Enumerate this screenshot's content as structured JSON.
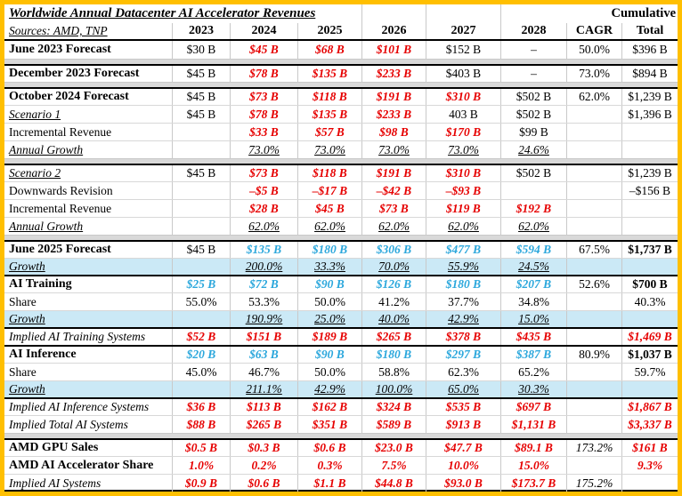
{
  "title": "Worldwide Annual Datacenter AI Accelerator Revenues",
  "cumulative_label": "Cumulative",
  "sources": "Sources: AMD, TNP",
  "columns": [
    "2023",
    "2024",
    "2025",
    "2026",
    "2027",
    "2028",
    "CAGR",
    "Total"
  ],
  "colors": {
    "outer_border_gold": "#FFBF00",
    "negative_red": "#E60000",
    "forecast_blue": "#2BA7DC",
    "growth_row_bg": "#CBE9F6",
    "separator_gray": "#D9D9D9"
  },
  "rows": [
    {
      "label": "June 2023 Forecast",
      "ls": "b",
      "top": "none",
      "cells": [
        {
          "t": "$30 B",
          "s": "k"
        },
        {
          "t": "$45 B",
          "s": "r"
        },
        {
          "t": "$68 B",
          "s": "r"
        },
        {
          "t": "$101 B",
          "s": "r"
        },
        {
          "t": "$152 B",
          "s": "k"
        },
        {
          "t": "–",
          "s": "k"
        },
        {
          "t": "50.0%",
          "s": "k"
        },
        {
          "t": "$396 B",
          "s": "k"
        }
      ]
    },
    {
      "label": "December 2023 Forecast",
      "ls": "b",
      "top": "black",
      "sep": true,
      "cells": [
        {
          "t": "$45 B",
          "s": "k"
        },
        {
          "t": "$78 B",
          "s": "r"
        },
        {
          "t": "$135 B",
          "s": "r"
        },
        {
          "t": "$233 B",
          "s": "r"
        },
        {
          "t": "$403 B",
          "s": "k"
        },
        {
          "t": "–",
          "s": "k"
        },
        {
          "t": "73.0%",
          "s": "k"
        },
        {
          "t": "$894 B",
          "s": "k"
        }
      ]
    },
    {
      "label": "October 2024 Forecast",
      "ls": "b",
      "top": "black",
      "sep": true,
      "cells": [
        {
          "t": "$45 B",
          "s": "k"
        },
        {
          "t": "$73 B",
          "s": "r"
        },
        {
          "t": "$118 B",
          "s": "r"
        },
        {
          "t": "$191 B",
          "s": "r"
        },
        {
          "t": "$310 B",
          "s": "r"
        },
        {
          "t": "$502 B",
          "s": "k"
        },
        {
          "t": "62.0%",
          "s": "k"
        },
        {
          "t": "$1,239 B",
          "s": "k"
        }
      ]
    },
    {
      "label": "Scenario 1",
      "ls": "iu",
      "top": "grid",
      "cells": [
        {
          "t": "$45 B",
          "s": "k"
        },
        {
          "t": "$78 B",
          "s": "r"
        },
        {
          "t": "$135 B",
          "s": "r"
        },
        {
          "t": "$233 B",
          "s": "r"
        },
        {
          "t": "403 B",
          "s": "k"
        },
        {
          "t": "$502 B",
          "s": "k"
        },
        null,
        {
          "t": "$1,396 B",
          "s": "k"
        }
      ]
    },
    {
      "label": "Incremental Revenue",
      "ls": "r",
      "top": "grid",
      "cells": [
        null,
        {
          "t": "$33 B",
          "s": "r"
        },
        {
          "t": "$57 B",
          "s": "r"
        },
        {
          "t": "$98 B",
          "s": "r"
        },
        {
          "t": "$170 B",
          "s": "r"
        },
        {
          "t": "$99 B",
          "s": "k"
        },
        null,
        null
      ]
    },
    {
      "label": "Annual Growth",
      "ls": "iu",
      "top": "grid",
      "cells": [
        null,
        {
          "t": "73.0%",
          "s": "u"
        },
        {
          "t": "73.0%",
          "s": "u"
        },
        {
          "t": "73.0%",
          "s": "u"
        },
        {
          "t": "73.0%",
          "s": "u"
        },
        {
          "t": "24.6%",
          "s": "u"
        },
        null,
        null
      ]
    },
    {
      "label": "Scenario 2",
      "ls": "iu",
      "top": "black",
      "sep": true,
      "cells": [
        {
          "t": "$45 B",
          "s": "k"
        },
        {
          "t": "$73 B",
          "s": "r"
        },
        {
          "t": "$118 B",
          "s": "r"
        },
        {
          "t": "$191 B",
          "s": "r"
        },
        {
          "t": "$310 B",
          "s": "r"
        },
        {
          "t": "$502 B",
          "s": "k"
        },
        null,
        {
          "t": "$1,239 B",
          "s": "k"
        }
      ]
    },
    {
      "label": "Downwards Revision",
      "ls": "r",
      "top": "grid",
      "cells": [
        null,
        {
          "t": "–$5 B",
          "s": "r"
        },
        {
          "t": "–$17 B",
          "s": "r"
        },
        {
          "t": "–$42 B",
          "s": "r"
        },
        {
          "t": "–$93 B",
          "s": "r"
        },
        null,
        null,
        {
          "t": "–$156 B",
          "s": "k"
        }
      ]
    },
    {
      "label": "Incremental Revenue",
      "ls": "r",
      "top": "grid",
      "cells": [
        null,
        {
          "t": "$28 B",
          "s": "r"
        },
        {
          "t": "$45 B",
          "s": "r"
        },
        {
          "t": "$73 B",
          "s": "r"
        },
        {
          "t": "$119 B",
          "s": "r"
        },
        {
          "t": "$192 B",
          "s": "r"
        },
        null,
        null
      ]
    },
    {
      "label": "Annual Growth",
      "ls": "iu",
      "top": "grid",
      "cells": [
        null,
        {
          "t": "62.0%",
          "s": "u"
        },
        {
          "t": "62.0%",
          "s": "u"
        },
        {
          "t": "62.0%",
          "s": "u"
        },
        {
          "t": "62.0%",
          "s": "u"
        },
        {
          "t": "62.0%",
          "s": "u"
        },
        null,
        null
      ]
    },
    {
      "label": "June 2025 Forecast",
      "ls": "b",
      "top": "black",
      "sep": true,
      "cells": [
        {
          "t": "$45 B",
          "s": "k"
        },
        {
          "t": "$135 B",
          "s": "b"
        },
        {
          "t": "$180 B",
          "s": "b"
        },
        {
          "t": "$306 B",
          "s": "b"
        },
        {
          "t": "$477 B",
          "s": "b"
        },
        {
          "t": "$594 B",
          "s": "b"
        },
        {
          "t": "67.5%",
          "s": "k"
        },
        {
          "t": "$1,737 B",
          "s": "kb"
        }
      ]
    },
    {
      "label": "Growth",
      "ls": "iu",
      "top": "grid",
      "bg": "blue",
      "cells": [
        null,
        {
          "t": "200.0%",
          "s": "u"
        },
        {
          "t": "33.3%",
          "s": "u"
        },
        {
          "t": "70.0%",
          "s": "u"
        },
        {
          "t": "55.9%",
          "s": "u"
        },
        {
          "t": "24.5%",
          "s": "u"
        },
        null,
        null
      ]
    },
    {
      "label": "AI Training",
      "ls": "b",
      "top": "black",
      "cells": [
        {
          "t": "$25 B",
          "s": "b"
        },
        {
          "t": "$72 B",
          "s": "b"
        },
        {
          "t": "$90 B",
          "s": "b"
        },
        {
          "t": "$126 B",
          "s": "b"
        },
        {
          "t": "$180 B",
          "s": "b"
        },
        {
          "t": "$207 B",
          "s": "b"
        },
        {
          "t": "52.6%",
          "s": "k"
        },
        {
          "t": "$700 B",
          "s": "kb"
        }
      ]
    },
    {
      "label": "Share",
      "ls": "r",
      "top": "grid",
      "cells": [
        {
          "t": "55.0%",
          "s": "k"
        },
        {
          "t": "53.3%",
          "s": "k"
        },
        {
          "t": "50.0%",
          "s": "k"
        },
        {
          "t": "41.2%",
          "s": "k"
        },
        {
          "t": "37.7%",
          "s": "k"
        },
        {
          "t": "34.8%",
          "s": "k"
        },
        null,
        {
          "t": "40.3%",
          "s": "k"
        }
      ]
    },
    {
      "label": "Growth",
      "ls": "iu",
      "top": "grid",
      "bg": "blue",
      "cells": [
        null,
        {
          "t": "190.9%",
          "s": "u"
        },
        {
          "t": "25.0%",
          "s": "u"
        },
        {
          "t": "40.0%",
          "s": "u"
        },
        {
          "t": "42.9%",
          "s": "u"
        },
        {
          "t": "15.0%",
          "s": "u"
        },
        null,
        null
      ]
    },
    {
      "label": "Implied AI Training Systems",
      "ls": "i",
      "top": "black",
      "cells": [
        {
          "t": "$52 B",
          "s": "r"
        },
        {
          "t": "$151 B",
          "s": "r"
        },
        {
          "t": "$189 B",
          "s": "r"
        },
        {
          "t": "$265 B",
          "s": "r"
        },
        {
          "t": "$378 B",
          "s": "r"
        },
        {
          "t": "$435 B",
          "s": "r"
        },
        null,
        {
          "t": "$1,469 B",
          "s": "r"
        }
      ]
    },
    {
      "label": "AI Inference",
      "ls": "b",
      "top": "black",
      "cells": [
        {
          "t": "$20 B",
          "s": "b"
        },
        {
          "t": "$63 B",
          "s": "b"
        },
        {
          "t": "$90 B",
          "s": "b"
        },
        {
          "t": "$180 B",
          "s": "b"
        },
        {
          "t": "$297 B",
          "s": "b"
        },
        {
          "t": "$387 B",
          "s": "b"
        },
        {
          "t": "80.9%",
          "s": "k"
        },
        {
          "t": "$1,037 B",
          "s": "kb"
        }
      ]
    },
    {
      "label": "Share",
      "ls": "r",
      "top": "grid",
      "cells": [
        {
          "t": "45.0%",
          "s": "k"
        },
        {
          "t": "46.7%",
          "s": "k"
        },
        {
          "t": "50.0%",
          "s": "k"
        },
        {
          "t": "58.8%",
          "s": "k"
        },
        {
          "t": "62.3%",
          "s": "k"
        },
        {
          "t": "65.2%",
          "s": "k"
        },
        null,
        {
          "t": "59.7%",
          "s": "k"
        }
      ]
    },
    {
      "label": "Growth",
      "ls": "iu",
      "top": "grid",
      "bg": "blue",
      "cells": [
        null,
        {
          "t": "211.1%",
          "s": "u"
        },
        {
          "t": "42.9%",
          "s": "u"
        },
        {
          "t": "100.0%",
          "s": "u"
        },
        {
          "t": "65.0%",
          "s": "u"
        },
        {
          "t": "30.3%",
          "s": "u"
        },
        null,
        null
      ]
    },
    {
      "label": "Implied AI Inference Systems",
      "ls": "i",
      "top": "black",
      "cells": [
        {
          "t": "$36 B",
          "s": "r"
        },
        {
          "t": "$113 B",
          "s": "r"
        },
        {
          "t": "$162 B",
          "s": "r"
        },
        {
          "t": "$324 B",
          "s": "r"
        },
        {
          "t": "$535 B",
          "s": "r"
        },
        {
          "t": "$697 B",
          "s": "r"
        },
        null,
        {
          "t": "$1,867 B",
          "s": "r"
        }
      ]
    },
    {
      "label": "Implied Total AI Systems",
      "ls": "i",
      "top": "grid",
      "cells": [
        {
          "t": "$88 B",
          "s": "r"
        },
        {
          "t": "$265 B",
          "s": "r"
        },
        {
          "t": "$351 B",
          "s": "r"
        },
        {
          "t": "$589 B",
          "s": "r"
        },
        {
          "t": "$913 B",
          "s": "r"
        },
        {
          "t": "$1,131 B",
          "s": "r"
        },
        null,
        {
          "t": "$3,337 B",
          "s": "r"
        }
      ]
    },
    {
      "label": "AMD GPU Sales",
      "ls": "b",
      "top": "black",
      "sep": true,
      "cells": [
        {
          "t": "$0.5 B",
          "s": "r"
        },
        {
          "t": "$0.3 B",
          "s": "r"
        },
        {
          "t": "$0.6 B",
          "s": "r"
        },
        {
          "t": "$23.0 B",
          "s": "r"
        },
        {
          "t": "$47.7 B",
          "s": "r"
        },
        {
          "t": "$89.1 B",
          "s": "r"
        },
        {
          "t": "173.2%",
          "s": "ki"
        },
        {
          "t": "$161 B",
          "s": "r"
        }
      ]
    },
    {
      "label": "AMD AI Accelerator Share",
      "ls": "b",
      "top": "grid",
      "cells": [
        {
          "t": "1.0%",
          "s": "r"
        },
        {
          "t": "0.2%",
          "s": "r"
        },
        {
          "t": "0.3%",
          "s": "r"
        },
        {
          "t": "7.5%",
          "s": "r"
        },
        {
          "t": "10.0%",
          "s": "r"
        },
        {
          "t": "15.0%",
          "s": "r"
        },
        null,
        {
          "t": "9.3%",
          "s": "r"
        }
      ]
    },
    {
      "label": "Implied AI Systems",
      "ls": "i",
      "top": "grid",
      "cells": [
        {
          "t": "$0.9 B",
          "s": "r"
        },
        {
          "t": "$0.6 B",
          "s": "r"
        },
        {
          "t": "$1.1 B",
          "s": "r"
        },
        {
          "t": "$44.8 B",
          "s": "r"
        },
        {
          "t": "$93.0 B",
          "s": "r"
        },
        {
          "t": "$173.7 B",
          "s": "r"
        },
        {
          "t": "175.2%",
          "s": "ki"
        },
        null
      ]
    }
  ]
}
